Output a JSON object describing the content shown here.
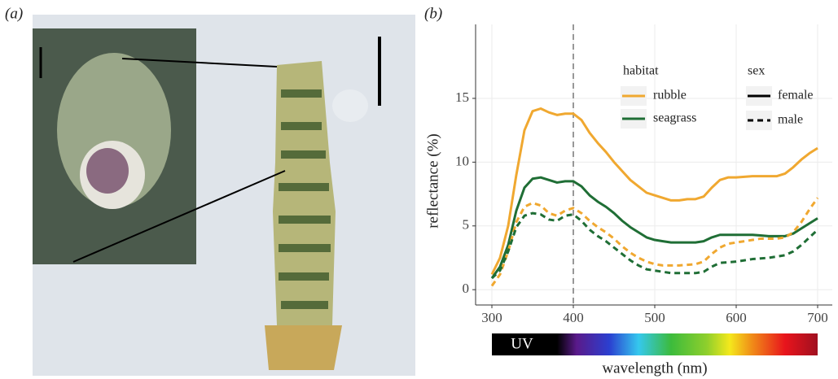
{
  "panel_labels": [
    "(a)",
    "(b)"
  ],
  "chart_data": {
    "type": "line",
    "x": [
      300,
      310,
      320,
      330,
      340,
      350,
      360,
      370,
      380,
      390,
      400,
      410,
      420,
      430,
      440,
      450,
      460,
      470,
      480,
      490,
      500,
      510,
      520,
      530,
      540,
      550,
      560,
      570,
      580,
      590,
      600,
      610,
      620,
      630,
      640,
      650,
      660,
      670,
      680,
      690,
      700
    ],
    "series": [
      {
        "color": "#f0a830",
        "dash": "solid",
        "values": [
          1.2,
          2.5,
          5,
          9,
          12.5,
          14,
          14.2,
          13.9,
          13.7,
          13.8,
          13.8,
          13.3,
          12.3,
          11.5,
          10.8,
          10,
          9.3,
          8.6,
          8.1,
          7.6,
          7.4,
          7.2,
          7.0,
          7.0,
          7.1,
          7.1,
          7.3,
          8.0,
          8.6,
          8.8,
          8.8,
          8.85,
          8.9,
          8.9,
          8.9,
          8.9,
          9.1,
          9.6,
          10.2,
          10.7,
          11.1
        ]
      },
      {
        "color": "#1f6e35",
        "dash": "solid",
        "values": [
          0.9,
          1.8,
          3.5,
          6.2,
          8,
          8.7,
          8.8,
          8.6,
          8.4,
          8.5,
          8.5,
          8.1,
          7.4,
          6.9,
          6.5,
          6.0,
          5.4,
          4.9,
          4.5,
          4.1,
          3.9,
          3.8,
          3.7,
          3.7,
          3.7,
          3.7,
          3.8,
          4.1,
          4.3,
          4.3,
          4.3,
          4.3,
          4.3,
          4.25,
          4.2,
          4.2,
          4.2,
          4.4,
          4.8,
          5.2,
          5.6
        ]
      },
      {
        "color": "#f0a830",
        "dash": "dashed",
        "values": [
          0.3,
          1.2,
          3,
          5.3,
          6.5,
          6.8,
          6.6,
          6.0,
          5.8,
          6.2,
          6.4,
          6.0,
          5.4,
          4.9,
          4.5,
          4.0,
          3.4,
          2.9,
          2.5,
          2.2,
          2.0,
          1.9,
          1.9,
          1.9,
          1.95,
          2.0,
          2.2,
          2.8,
          3.3,
          3.6,
          3.7,
          3.8,
          3.9,
          4.0,
          4.0,
          4.0,
          4.1,
          4.5,
          5.3,
          6.3,
          7.2
        ]
      },
      {
        "color": "#1f6e35",
        "dash": "dashed",
        "values": [
          0.9,
          1.5,
          3.0,
          4.9,
          5.8,
          6.0,
          5.9,
          5.5,
          5.4,
          5.8,
          5.9,
          5.4,
          4.7,
          4.2,
          3.8,
          3.3,
          2.8,
          2.3,
          1.9,
          1.6,
          1.5,
          1.4,
          1.3,
          1.3,
          1.3,
          1.3,
          1.4,
          1.8,
          2.1,
          2.15,
          2.2,
          2.3,
          2.4,
          2.45,
          2.5,
          2.6,
          2.7,
          3.0,
          3.5,
          4.1,
          4.7
        ]
      }
    ],
    "legend": {
      "habitat": {
        "title": "habitat",
        "entries": [
          {
            "name": "rubble",
            "color": "#f0a830"
          },
          {
            "name": "seagrass",
            "color": "#1f6e35"
          }
        ]
      },
      "sex": {
        "title": "sex",
        "entries": [
          {
            "name": "female",
            "dash": "solid"
          },
          {
            "name": "male",
            "dash": "dashed"
          }
        ]
      }
    },
    "vline": 400,
    "spectrum_label": "UV",
    "xlabel": "wavelength (nm)",
    "ylabel": "reflectance (%)",
    "xlim": [
      280,
      718
    ],
    "ylim": [
      -1.2,
      20.8
    ],
    "xticks": [
      300,
      400,
      500,
      600,
      700
    ],
    "yticks": [
      0,
      5,
      10,
      15
    ],
    "grid": true
  }
}
